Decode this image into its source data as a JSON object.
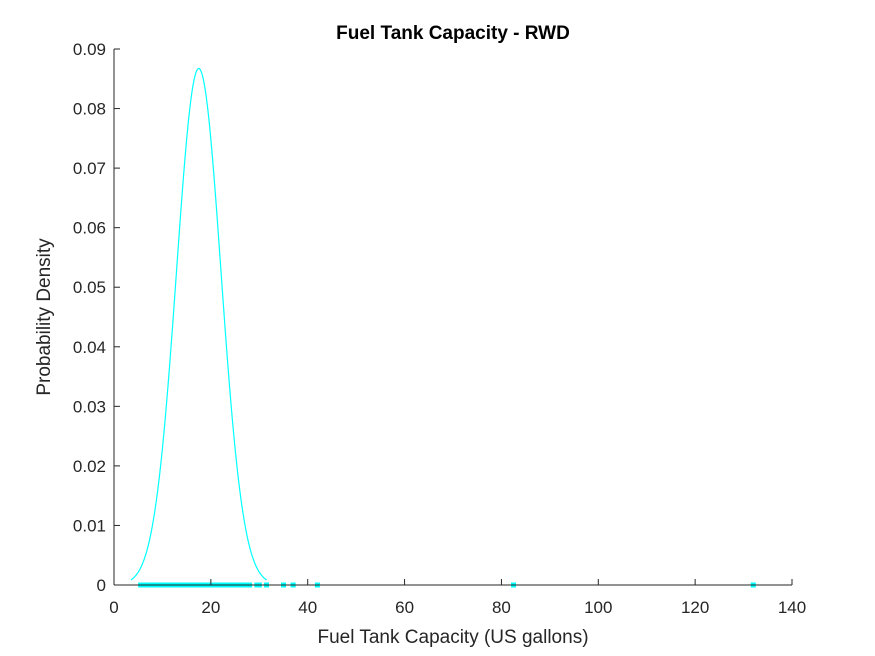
{
  "chart_data": {
    "type": "line",
    "title": "Fuel Tank Capacity - RWD",
    "xlabel": "Fuel Tank Capacity (US gallons)",
    "ylabel": "Probability Density",
    "xlim": [
      0,
      140
    ],
    "ylim": [
      0,
      0.09
    ],
    "xticks": [
      0,
      20,
      40,
      60,
      80,
      100,
      120,
      140
    ],
    "yticks": [
      0,
      0.01,
      0.02,
      0.03,
      0.04,
      0.05,
      0.06,
      0.07,
      0.08,
      0.09
    ],
    "ytick_labels": [
      "0",
      "0.01",
      "0.02",
      "0.03",
      "0.04",
      "0.05",
      "0.06",
      "0.07",
      "0.08",
      "0.09"
    ],
    "grid": false,
    "color": "#00FFFF",
    "series": [
      {
        "kind": "normal-pdf-curve",
        "mean": 17.5,
        "std": 4.6,
        "x_range": [
          3.5,
          31.5
        ]
      },
      {
        "kind": "data-points-on-axis",
        "x": [
          5.5,
          6.5,
          7.5,
          8.0,
          8.5,
          9.0,
          9.5,
          10.0,
          10.5,
          11.0,
          11.5,
          12.0,
          12.5,
          13.0,
          13.5,
          14.0,
          14.5,
          15.0,
          15.5,
          16.0,
          16.5,
          17.0,
          17.5,
          18.0,
          18.5,
          19.0,
          19.5,
          20.0,
          20.5,
          21.0,
          21.5,
          22.0,
          22.5,
          23.0,
          23.5,
          24.0,
          24.5,
          25.0,
          25.5,
          26.0,
          26.5,
          27.0,
          27.5,
          28.0,
          29.5,
          30.0,
          31.5,
          35.0,
          37.0,
          42.0,
          82.5,
          132.0
        ],
        "y": 0
      }
    ]
  }
}
